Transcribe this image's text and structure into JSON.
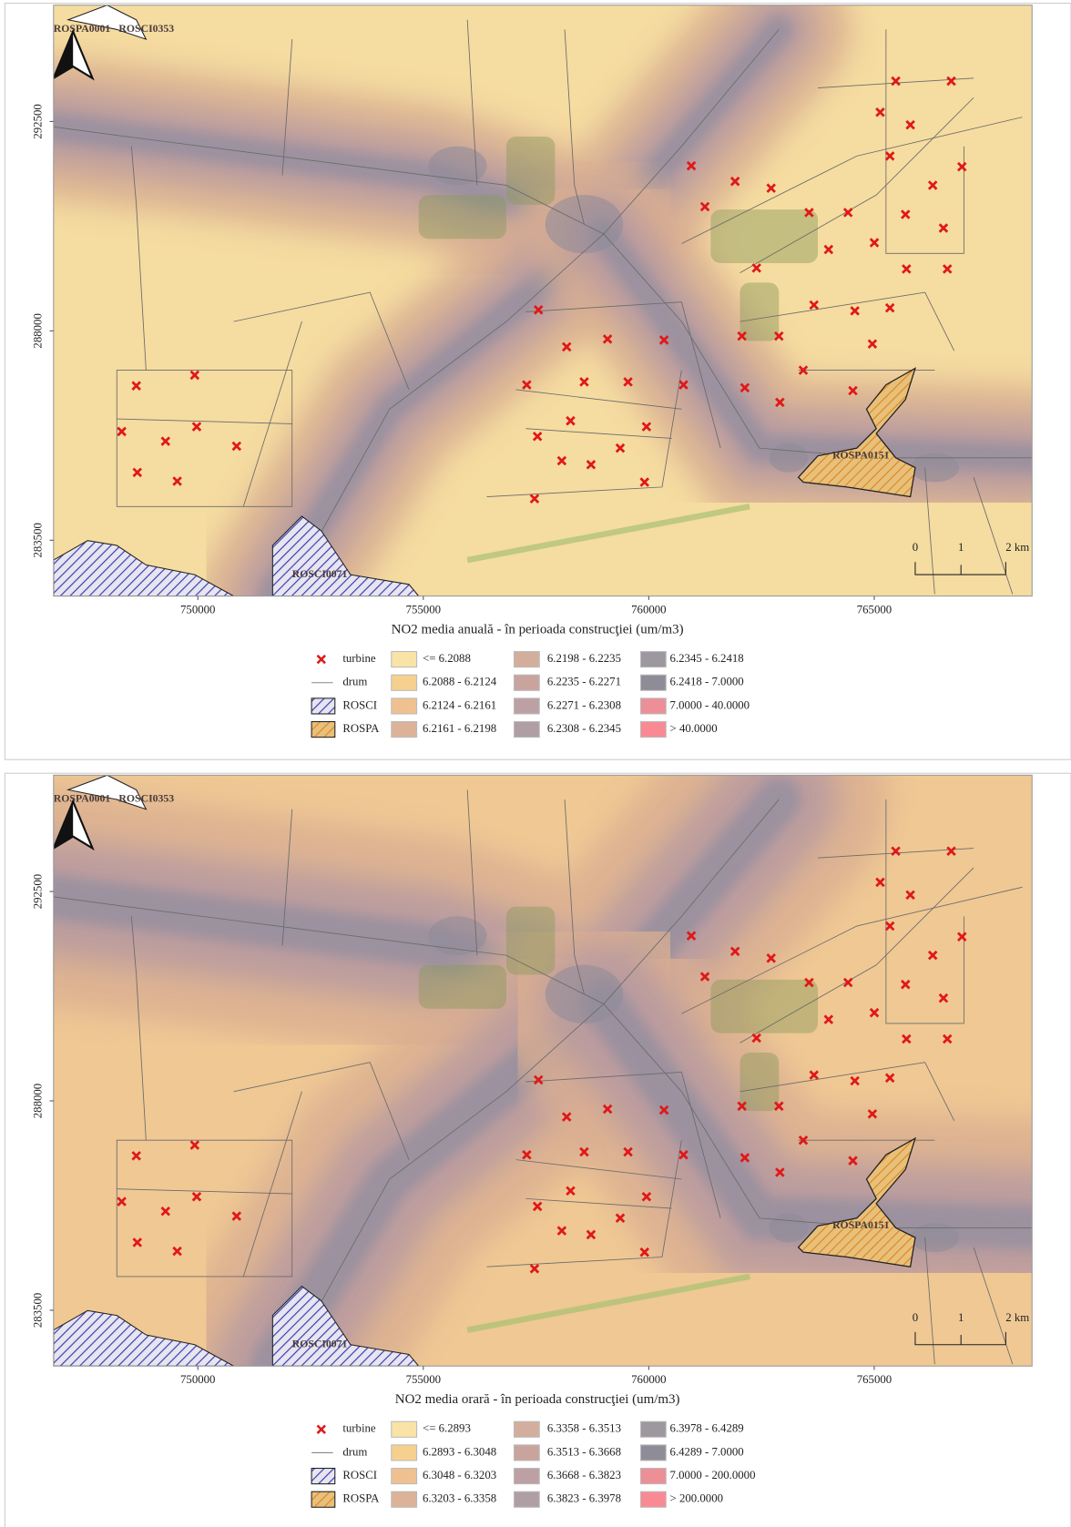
{
  "panels": [
    {
      "map_labels": [
        "ROSPA0001",
        "ROSCI0353",
        "ROSPA0151",
        "ROSCI0071"
      ],
      "xlim": [
        746800,
        768500
      ],
      "ylim": [
        282300,
        295000
      ],
      "xticks": [
        750000,
        755000,
        760000,
        765000
      ],
      "yticks": [
        292500,
        288000,
        283500
      ],
      "scale_labels": [
        "0",
        "1",
        "2 km"
      ],
      "title": "NO2 media anuală - în perioada construcţiei (um/m3)",
      "legend": {
        "symbols": [
          "turbine",
          "drum",
          "ROSCI",
          "ROSPA"
        ],
        "classes": [
          {
            "label": "<= 6.2088",
            "color": "#f9e3a6"
          },
          {
            "label": "6.2088 - 6.2124",
            "color": "#f5d08e"
          },
          {
            "label": "6.2124 - 6.2161",
            "color": "#f0c190"
          },
          {
            "label": "6.2161 - 6.2198",
            "color": "#dcb399"
          },
          {
            "label": "6.2198 - 6.2235",
            "color": "#d4ae9c"
          },
          {
            "label": "6.2235 - 6.2271",
            "color": "#c9a49d"
          },
          {
            "label": "6.2271 - 6.2308",
            "color": "#bda0a3"
          },
          {
            "label": "6.2308 - 6.2345",
            "color": "#b09ea5"
          },
          {
            "label": "6.2345 - 6.2418",
            "color": "#9d97a0"
          },
          {
            "label": "6.2418 - 7.0000",
            "color": "#8e8c97"
          },
          {
            "label": "7.0000 - 40.0000",
            "color": "#ec8f96"
          },
          {
            "label": "> 40.0000",
            "color": "#f98a93"
          }
        ]
      }
    },
    {
      "map_labels": [
        "ROSPA0001",
        "ROSCI0353",
        "ROSPA0151",
        "ROSCI0071"
      ],
      "xlim": [
        746800,
        768500
      ],
      "ylim": [
        282300,
        295000
      ],
      "xticks": [
        750000,
        755000,
        760000,
        765000
      ],
      "yticks": [
        292500,
        288000,
        283500
      ],
      "scale_labels": [
        "0",
        "1",
        "2 km"
      ],
      "title": "NO2 media orară - în perioada construcţiei (um/m3)",
      "legend": {
        "symbols": [
          "turbine",
          "drum",
          "ROSCI",
          "ROSPA"
        ],
        "classes": [
          {
            "label": "<= 6.2893",
            "color": "#f9e3a6"
          },
          {
            "label": "6.2893 - 6.3048",
            "color": "#f5d08e"
          },
          {
            "label": "6.3048 - 6.3203",
            "color": "#f0c190"
          },
          {
            "label": "6.3203 - 6.3358",
            "color": "#dcb399"
          },
          {
            "label": "6.3358 - 6.3513",
            "color": "#d4ae9c"
          },
          {
            "label": "6.3513 - 6.3668",
            "color": "#c9a49d"
          },
          {
            "label": "6.3668 - 6.3823",
            "color": "#bda0a3"
          },
          {
            "label": "6.3823 - 6.3978",
            "color": "#b09ea5"
          },
          {
            "label": "6.3978 - 6.4289",
            "color": "#9d97a0"
          },
          {
            "label": "6.4289 - 7.0000",
            "color": "#8e8c97"
          },
          {
            "label": "7.0000 - 200.0000",
            "color": "#ec8f96"
          },
          {
            "label": "> 200.0000",
            "color": "#f98a93"
          }
        ]
      }
    }
  ]
}
